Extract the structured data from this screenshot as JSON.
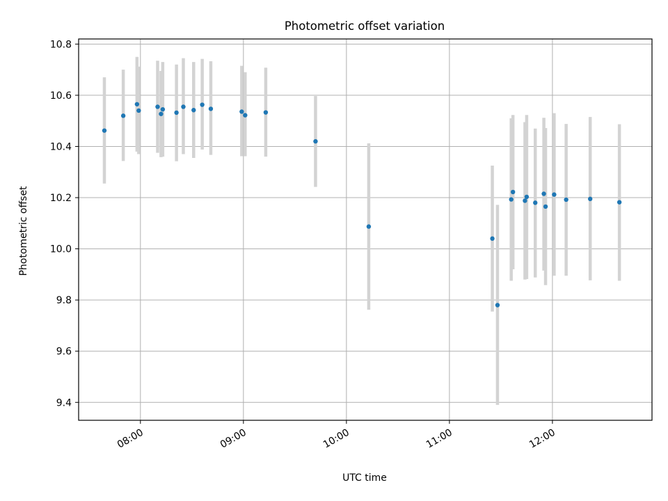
{
  "chart_data": {
    "type": "scatter",
    "title": "Photometric offset variation",
    "xlabel": "UTC time",
    "ylabel": "Photometric offset",
    "xlim": [
      "07:24",
      "12:58"
    ],
    "ylim": [
      9.33,
      10.82
    ],
    "xticks": [
      "08:00",
      "09:00",
      "10:00",
      "11:00",
      "12:00"
    ],
    "yticks": [
      9.4,
      9.6,
      9.8,
      10.0,
      10.2,
      10.4,
      10.6,
      10.8
    ],
    "grid": true,
    "colors": {
      "point": "#1f77b4",
      "errorbar": "#d3d3d3",
      "grid": "#b0b0b0"
    },
    "points": [
      {
        "t": "07:39",
        "y": 10.462,
        "lo": 10.255,
        "hi": 10.67
      },
      {
        "t": "07:50",
        "y": 10.52,
        "lo": 10.343,
        "hi": 10.7
      },
      {
        "t": "07:58",
        "y": 10.565,
        "lo": 10.38,
        "hi": 10.75
      },
      {
        "t": "07:59",
        "y": 10.54,
        "lo": 10.37,
        "hi": 10.712
      },
      {
        "t": "08:10",
        "y": 10.555,
        "lo": 10.375,
        "hi": 10.735
      },
      {
        "t": "08:12",
        "y": 10.527,
        "lo": 10.358,
        "hi": 10.695
      },
      {
        "t": "08:13",
        "y": 10.545,
        "lo": 10.36,
        "hi": 10.73
      },
      {
        "t": "08:21",
        "y": 10.532,
        "lo": 10.342,
        "hi": 10.72
      },
      {
        "t": "08:25",
        "y": 10.555,
        "lo": 10.37,
        "hi": 10.745
      },
      {
        "t": "08:31",
        "y": 10.542,
        "lo": 10.355,
        "hi": 10.73
      },
      {
        "t": "08:36",
        "y": 10.563,
        "lo": 10.388,
        "hi": 10.742
      },
      {
        "t": "08:41",
        "y": 10.547,
        "lo": 10.367,
        "hi": 10.733
      },
      {
        "t": "08:59",
        "y": 10.536,
        "lo": 10.362,
        "hi": 10.715
      },
      {
        "t": "09:01",
        "y": 10.522,
        "lo": 10.362,
        "hi": 10.69
      },
      {
        "t": "09:13",
        "y": 10.533,
        "lo": 10.36,
        "hi": 10.708
      },
      {
        "t": "09:42",
        "y": 10.42,
        "lo": 10.242,
        "hi": 10.597
      },
      {
        "t": "10:13",
        "y": 10.087,
        "lo": 9.762,
        "hi": 10.412
      },
      {
        "t": "11:25",
        "y": 10.04,
        "lo": 9.755,
        "hi": 10.325
      },
      {
        "t": "11:28",
        "y": 9.78,
        "lo": 9.39,
        "hi": 10.172
      },
      {
        "t": "11:36",
        "y": 10.193,
        "lo": 9.875,
        "hi": 10.51
      },
      {
        "t": "11:37",
        "y": 10.222,
        "lo": 9.92,
        "hi": 10.523
      },
      {
        "t": "11:44",
        "y": 10.188,
        "lo": 9.88,
        "hi": 10.495
      },
      {
        "t": "11:45",
        "y": 10.203,
        "lo": 9.882,
        "hi": 10.523
      },
      {
        "t": "11:50",
        "y": 10.18,
        "lo": 9.888,
        "hi": 10.47
      },
      {
        "t": "11:55",
        "y": 10.215,
        "lo": 9.915,
        "hi": 10.512
      },
      {
        "t": "11:56",
        "y": 10.165,
        "lo": 9.858,
        "hi": 10.472
      },
      {
        "t": "12:01",
        "y": 10.212,
        "lo": 9.895,
        "hi": 10.53
      },
      {
        "t": "12:08",
        "y": 10.192,
        "lo": 9.895,
        "hi": 10.488
      },
      {
        "t": "12:22",
        "y": 10.195,
        "lo": 9.877,
        "hi": 10.515
      },
      {
        "t": "12:39",
        "y": 10.182,
        "lo": 9.875,
        "hi": 10.487
      }
    ]
  }
}
